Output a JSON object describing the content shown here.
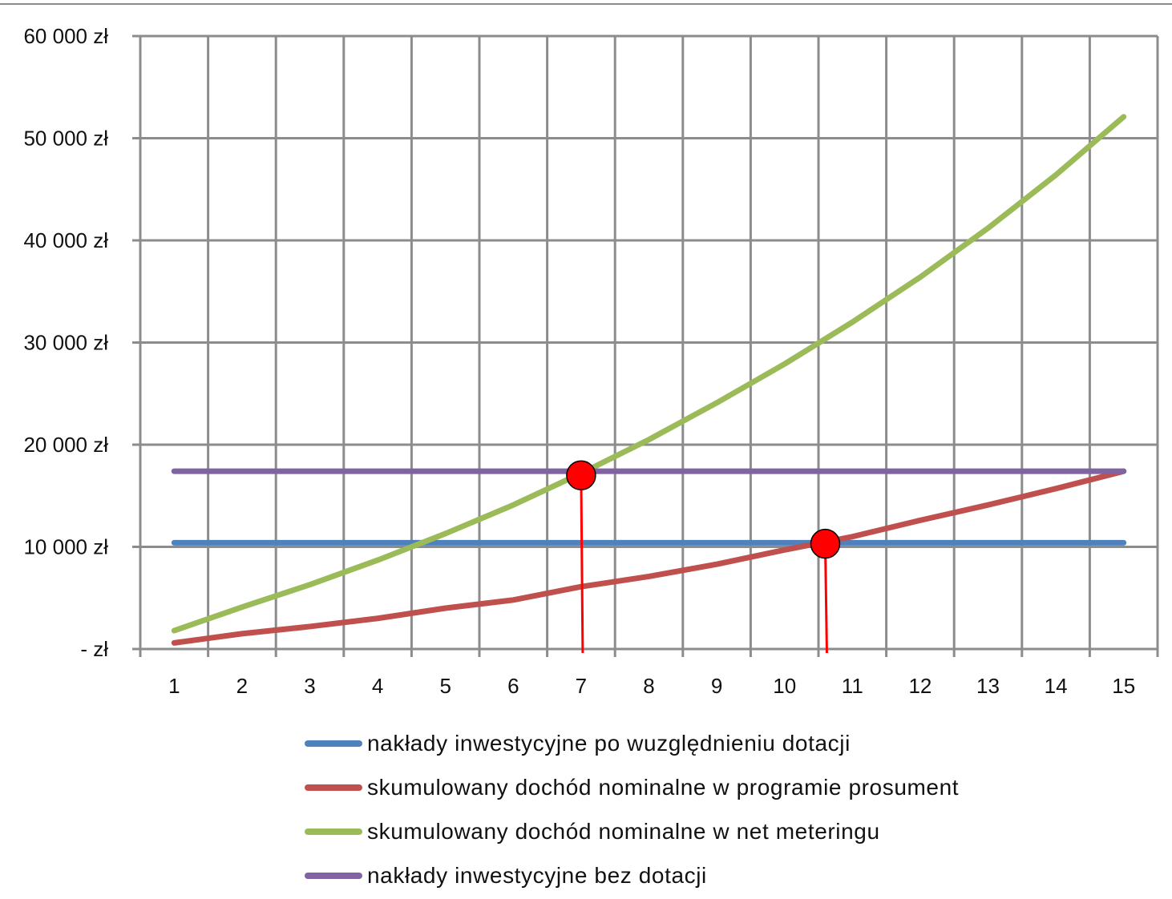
{
  "chart_data": {
    "type": "line",
    "title": "",
    "xlabel": "",
    "ylabel": "",
    "categories": [
      "1",
      "2",
      "3",
      "4",
      "5",
      "6",
      "7",
      "8",
      "9",
      "10",
      "11",
      "12",
      "13",
      "14",
      "15"
    ],
    "y_tick_labels": [
      "-   zł",
      "10 000 zł",
      "20 000 zł",
      "30 000 zł",
      "40 000 zł",
      "50 000 zł",
      "60 000 zł"
    ],
    "y_ticks": [
      0,
      10000,
      20000,
      30000,
      40000,
      50000,
      60000
    ],
    "ylim": [
      0,
      60000
    ],
    "grid": true,
    "legend_position": "bottom",
    "series": [
      {
        "name": "nakłady inwestycyjne po wuzględnieniu dotacji",
        "color": "#4f81bd",
        "values": [
          10400,
          10400,
          10400,
          10400,
          10400,
          10400,
          10400,
          10400,
          10400,
          10400,
          10400,
          10400,
          10400,
          10400,
          10400
        ]
      },
      {
        "name": "skumulowany dochód nominalne w programie prosument",
        "color": "#c0504d",
        "values": [
          600,
          1500,
          2200,
          3000,
          4000,
          4800,
          6100,
          7100,
          8300,
          9700,
          11000,
          12600,
          14100,
          15700,
          17400
        ]
      },
      {
        "name": "skumulowany dochód nominalne w net meteringu",
        "color": "#9bbb59",
        "values": [
          1800,
          4100,
          6300,
          8700,
          11300,
          14100,
          17200,
          20500,
          24100,
          27900,
          32000,
          36400,
          41200,
          46400,
          52100
        ]
      },
      {
        "name": "nakłady inwestycyjne bez dotacji",
        "color": "#8064a2",
        "values": [
          17400,
          17400,
          17400,
          17400,
          17400,
          17400,
          17400,
          17400,
          17400,
          17400,
          17400,
          17400,
          17400,
          17400,
          17400
        ]
      }
    ],
    "annotations": [
      {
        "type": "marker",
        "x": 7.0,
        "y": 17000,
        "color": "#ff0000",
        "drop_line": true
      },
      {
        "type": "marker",
        "x": 10.6,
        "y": 10300,
        "color": "#ff0000",
        "drop_line": true
      }
    ]
  }
}
